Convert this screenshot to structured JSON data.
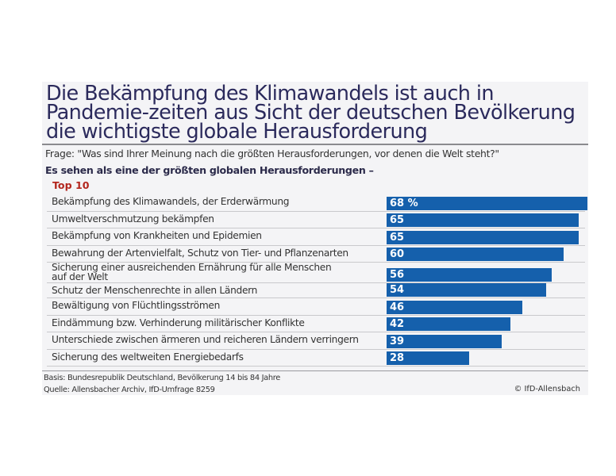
{
  "chart_data": {
    "type": "bar",
    "orientation": "horizontal",
    "title": "Die Bekämpfung des Klimawandels ist auch in Pandemie-zeiten aus Sicht der deutschen Bevölkerung die wichtigste globale Herausforderung",
    "question": "Frage: \"Was sind Ihrer Meinung nach die größten Herausforderungen, vor denen die Welt steht?\"",
    "subtitle": "Es sehen als eine der größten globalen Herausforderungen –",
    "group_label": "Top 10",
    "categories": [
      "Bekämpfung des Klimawandels, der Erderwärmung",
      "Umweltverschmutzung bekämpfen",
      "Bekämpfung von Krankheiten und Epidemien",
      "Bewahrung der Artenvielfalt, Schutz von Tier- und Pflanzenarten",
      "Sicherung einer ausreichenden Ernährung für alle Menschen auf der Welt",
      "Schutz der Menschenrechte in allen Ländern",
      "Bewältigung von Flüchtlingsströmen",
      "Eindämmung bzw. Verhinderung militärischer Konflikte",
      "Unterschiede zwischen ärmeren und reicheren Ländern verringern",
      "Sicherung des weltweiten Energiebedarfs"
    ],
    "values": [
      68,
      65,
      65,
      60,
      56,
      54,
      46,
      42,
      39,
      28
    ],
    "value_labels": [
      "68 %",
      "65",
      "65",
      "60",
      "56",
      "54",
      "46",
      "42",
      "39",
      "28"
    ],
    "unit": "%",
    "bar_color": "#1560ac",
    "xlim": [
      0,
      68
    ],
    "grid": false,
    "legend": "none"
  },
  "footer": {
    "basis": "Basis: Bundesrepublik Deutschland, Bevölkerung 14 bis 84 Jahre",
    "source": "Quelle: Allensbacher Archiv, IfD-Umfrage 8259",
    "copyright": "© IfD-Allensbach"
  }
}
